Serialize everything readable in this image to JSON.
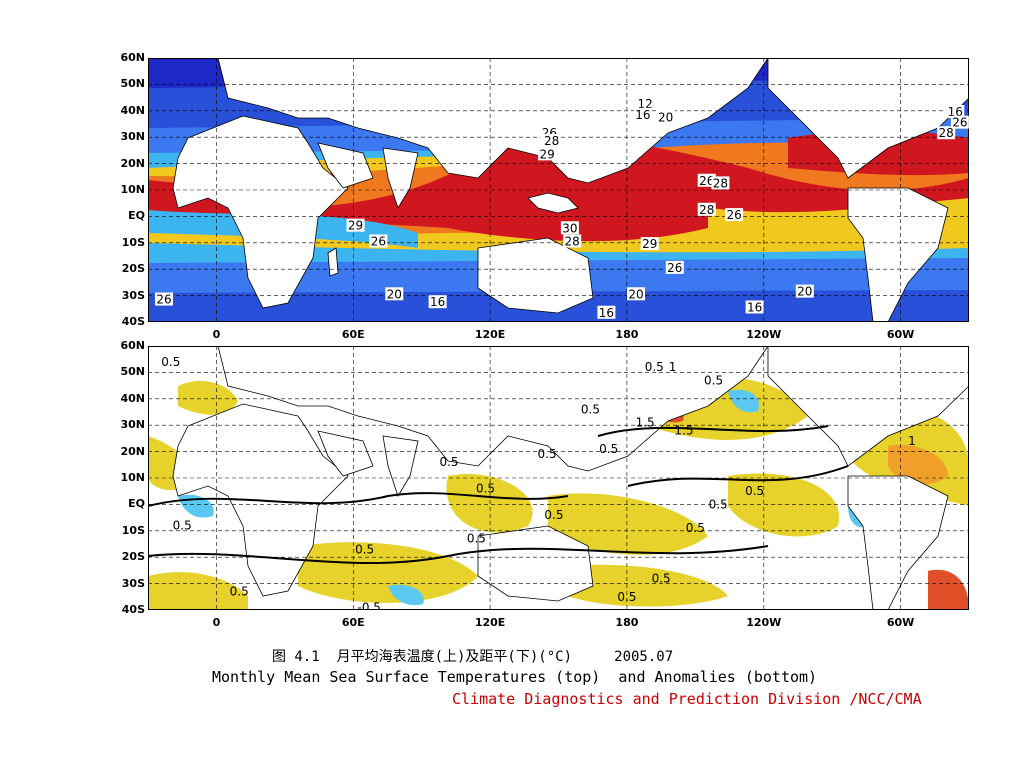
{
  "figure": {
    "caption_cn": "图 4.1  月平均海表温度(上)及距平(下)(°C)     2005.07",
    "caption_en": "Monthly Mean Sea Surface Temperatures (top)  and Anomalies (bottom)",
    "credit": "Climate Diagnostics and Prediction Division /NCC/CMA",
    "credit_color": "#c80000"
  },
  "axes": {
    "lat_ticks": [
      "60N",
      "50N",
      "40N",
      "30N",
      "20N",
      "10N",
      "EQ",
      "10S",
      "20S",
      "30S",
      "40S"
    ],
    "lat_values": [
      60,
      50,
      40,
      30,
      20,
      10,
      0,
      -10,
      -20,
      -30,
      -40
    ],
    "lon_ticks": [
      "0",
      "60E",
      "120E",
      "180",
      "120W",
      "60W"
    ],
    "lon_values": [
      0,
      60,
      120,
      180,
      240,
      300
    ],
    "lon_range": [
      -30,
      330
    ],
    "lat_range": [
      -40,
      60
    ]
  },
  "top_panel": {
    "field": "Monthly mean SST",
    "colors": {
      "gt28": "#d0161e",
      "26_28": "#f0781e",
      "24_26": "#f0c81e",
      "20_24": "#3cb4f0",
      "16_20": "#3c78f0",
      "10_16": "#2850d8",
      "lt10": "#1e28c8",
      "land": "#ffffff"
    },
    "labels": [
      {
        "text": "12",
        "lon": 188,
        "lat": 42.5
      },
      {
        "text": "16",
        "lon": 187,
        "lat": 38.5
      },
      {
        "text": "20",
        "lon": 197,
        "lat": 37.5
      },
      {
        "text": "16",
        "lon": 324,
        "lat": 39.5
      },
      {
        "text": "26",
        "lon": 326,
        "lat": 35.5
      },
      {
        "text": "28",
        "lon": 320,
        "lat": 31.5
      },
      {
        "text": "26",
        "lon": 146,
        "lat": 31.5
      },
      {
        "text": "28",
        "lon": 147,
        "lat": 28.5
      },
      {
        "text": "29",
        "lon": 145,
        "lat": 23.5
      },
      {
        "text": "26",
        "lon": 215,
        "lat": 13.5
      },
      {
        "text": "28",
        "lon": 221,
        "lat": 12.5
      },
      {
        "text": "28",
        "lon": 215,
        "lat": 2.5
      },
      {
        "text": "26",
        "lon": 227,
        "lat": 0.5
      },
      {
        "text": "29",
        "lon": 61,
        "lat": -3.5
      },
      {
        "text": "26",
        "lon": 71,
        "lat": -9.5
      },
      {
        "text": "30",
        "lon": 155,
        "lat": -4.5
      },
      {
        "text": "28",
        "lon": 156,
        "lat": -9.5
      },
      {
        "text": "29",
        "lon": 190,
        "lat": -10.5
      },
      {
        "text": "26",
        "lon": 201,
        "lat": -19.5
      },
      {
        "text": "20",
        "lon": 78,
        "lat": -29.5
      },
      {
        "text": "16",
        "lon": 97,
        "lat": -32.5
      },
      {
        "text": "20",
        "lon": 184,
        "lat": -29.5
      },
      {
        "text": "16",
        "lon": 171,
        "lat": -36.5
      },
      {
        "text": "16",
        "lon": 236,
        "lat": -34.5
      },
      {
        "text": "20",
        "lon": 258,
        "lat": -28.5
      },
      {
        "text": "26",
        "lon": -23,
        "lat": -31.5
      }
    ]
  },
  "bottom_panel": {
    "field": "SST anomaly",
    "colors": {
      "pos_0_5": "#e6d22a",
      "pos_1": "#f0a028",
      "pos_1_5": "#e05028",
      "pos_2": "#c81e1e",
      "neg_0_5": "#5ac8f0",
      "land": "#ffffff"
    },
    "labels": [
      {
        "text": "0.5",
        "lon": -20,
        "lat": 54
      },
      {
        "text": "0.5",
        "lon": 192,
        "lat": 52
      },
      {
        "text": "1",
        "lon": 200,
        "lat": 52
      },
      {
        "text": "0.5",
        "lon": 218,
        "lat": 47
      },
      {
        "text": "0.5",
        "lon": 164,
        "lat": 36
      },
      {
        "text": "1.5",
        "lon": 188,
        "lat": 31
      },
      {
        "text": "1.5",
        "lon": 205,
        "lat": 28
      },
      {
        "text": "0.5",
        "lon": 172,
        "lat": 21
      },
      {
        "text": "1",
        "lon": 305,
        "lat": 24
      },
      {
        "text": "0.5",
        "lon": 145,
        "lat": 19
      },
      {
        "text": "0.5",
        "lon": 102,
        "lat": 16
      },
      {
        "text": "0.5",
        "lon": 118,
        "lat": 6
      },
      {
        "text": "0.5",
        "lon": 236,
        "lat": 5
      },
      {
        "text": "0.5",
        "lon": 220,
        "lat": 0
      },
      {
        "text": "0.5",
        "lon": 148,
        "lat": -4
      },
      {
        "text": "0.5",
        "lon": 210,
        "lat": -9
      },
      {
        "text": "0.5",
        "lon": -15,
        "lat": -8
      },
      {
        "text": "0.5",
        "lon": 114,
        "lat": -13
      },
      {
        "text": "0.5",
        "lon": 65,
        "lat": -17
      },
      {
        "text": "0.5",
        "lon": 195,
        "lat": -28
      },
      {
        "text": "0.5",
        "lon": 180,
        "lat": -35
      },
      {
        "text": "0.5",
        "lon": 10,
        "lat": -33
      },
      {
        "text": "-0.5",
        "lon": 67,
        "lat": -39
      }
    ]
  }
}
